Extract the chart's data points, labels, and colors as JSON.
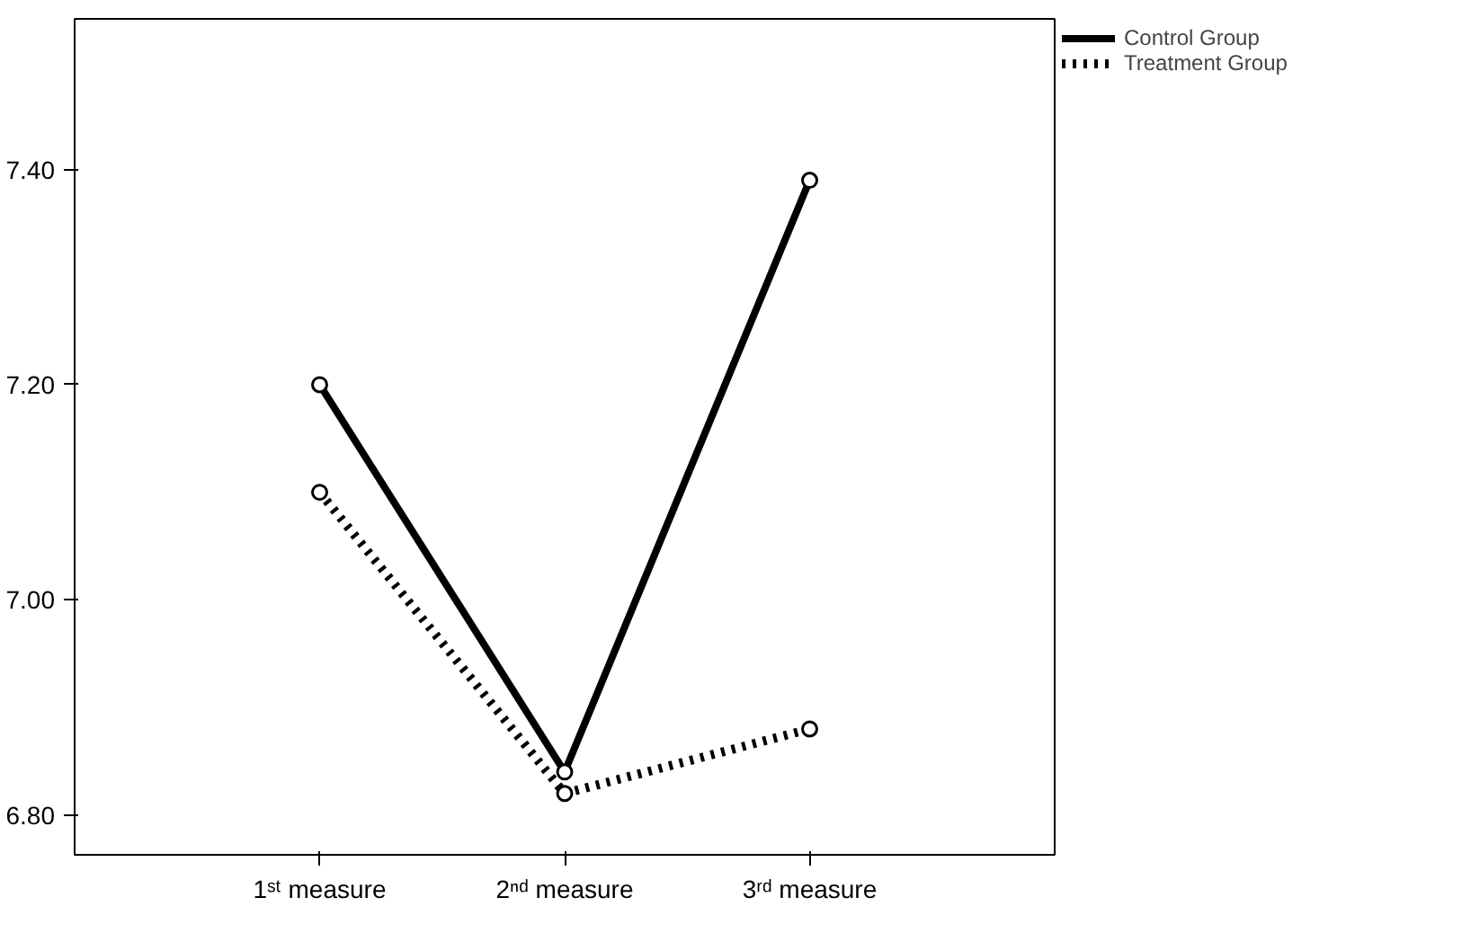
{
  "chart_data": {
    "type": "line",
    "categories": [
      "1ˢᵗ measure",
      "2ⁿᵈ measure",
      "3ʳᵈ measure"
    ],
    "series": [
      {
        "name": "Control Group",
        "color": "#000000",
        "values": [
          7.2,
          6.84,
          7.39
        ],
        "line_style": "solid"
      },
      {
        "name": "Treatment Group",
        "color": "#000000",
        "values": [
          7.1,
          6.82,
          6.88
        ],
        "line_style": "dotted"
      }
    ],
    "ylim": [
      6.763,
      7.54
    ],
    "yticks": [
      {
        "value": 6.8,
        "label": "6.80"
      },
      {
        "value": 7.0,
        "label": "7.00"
      },
      {
        "value": 7.2,
        "label": "7.20"
      },
      {
        "value": 7.4,
        "label": "7.40"
      }
    ],
    "grid": false,
    "legend": "top right",
    "marker": "circle"
  }
}
